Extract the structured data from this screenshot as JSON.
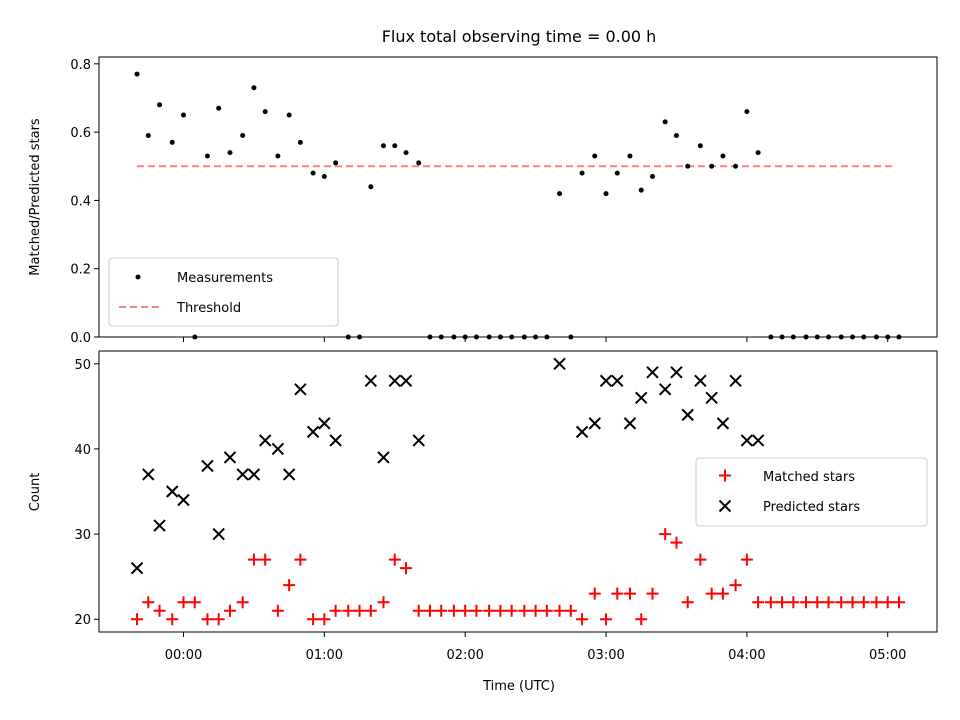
{
  "colors": {
    "measurement": "#000000",
    "threshold": "#ff7f7f",
    "matched": "#ff0000",
    "predicted": "#000000",
    "axis": "#000000"
  },
  "chart_data": [
    {
      "type": "scatter",
      "title": "Flux total observing time = 0.00 h",
      "xlabel": "",
      "ylabel": "Matched/Predicted stars",
      "x_range_hours": [
        -0.6,
        5.35
      ],
      "ylim": [
        0,
        0.82
      ],
      "yticks": [
        0.0,
        0.2,
        0.4,
        0.6,
        0.8
      ],
      "ytick_labels": [
        "0.0",
        "0.2",
        "0.4",
        "0.6",
        "0.8"
      ],
      "xticks_hours": [
        0,
        1,
        2,
        3,
        4,
        5
      ],
      "xtick_labels_shown": false,
      "legend_position": "lower-left",
      "legend": [
        "Measurements",
        "Threshold"
      ],
      "threshold": {
        "name": "Threshold",
        "y": 0.5,
        "x_start": -0.33,
        "x_end": 5.05
      },
      "measurements": {
        "name": "Measurements",
        "x": [
          -0.33,
          -0.25,
          -0.17,
          -0.08,
          0.0,
          0.08,
          0.17,
          0.25,
          0.33,
          0.42,
          0.5,
          0.58,
          0.67,
          0.75,
          0.83,
          0.92,
          1.0,
          1.08,
          1.17,
          1.25,
          1.33,
          1.42,
          1.5,
          1.58,
          1.67,
          1.75,
          1.83,
          1.92,
          2.0,
          2.08,
          2.17,
          2.25,
          2.33,
          2.42,
          2.5,
          2.58,
          2.67,
          2.75,
          2.83,
          2.92,
          3.0,
          3.08,
          3.17,
          3.25,
          3.33,
          3.42,
          3.5,
          3.58,
          3.67,
          3.75,
          3.83,
          3.92,
          4.0,
          4.08,
          4.17,
          4.25,
          4.33,
          4.42,
          4.5,
          4.58,
          4.67,
          4.75,
          4.83,
          4.92,
          5.0,
          5.08
        ],
        "y": [
          0.77,
          0.59,
          0.68,
          0.57,
          0.65,
          0.0,
          0.53,
          0.67,
          0.54,
          0.59,
          0.73,
          0.66,
          0.53,
          0.65,
          0.57,
          0.48,
          0.47,
          0.51,
          0.0,
          0.0,
          0.44,
          0.56,
          0.56,
          0.54,
          0.51,
          0.0,
          0.0,
          0.0,
          0.0,
          0.0,
          0.0,
          0.0,
          0.0,
          0.0,
          0.0,
          0.0,
          0.42,
          0.0,
          0.48,
          0.53,
          0.42,
          0.48,
          0.53,
          0.43,
          0.47,
          0.63,
          0.59,
          0.5,
          0.56,
          0.5,
          0.53,
          0.5,
          0.66,
          0.54,
          0.0,
          0.0,
          0.0,
          0.0,
          0.0,
          0.0,
          0.0,
          0.0,
          0.0,
          0.0,
          0.0,
          0.0
        ]
      }
    },
    {
      "type": "scatter",
      "title": "",
      "xlabel": "Time (UTC)",
      "ylabel": "Count",
      "x_range_hours": [
        -0.6,
        5.35
      ],
      "ylim": [
        18.5,
        51.5
      ],
      "yticks": [
        20,
        30,
        40,
        50
      ],
      "ytick_labels": [
        "20",
        "30",
        "40",
        "50"
      ],
      "xticks_hours": [
        0,
        1,
        2,
        3,
        4,
        5
      ],
      "xtick_labels": [
        "00:00",
        "01:00",
        "02:00",
        "03:00",
        "04:00",
        "05:00"
      ],
      "legend_position": "right",
      "legend": [
        "Matched stars",
        "Predicted stars"
      ],
      "series": [
        {
          "name": "Matched stars",
          "marker": "+",
          "x": [
            -0.33,
            -0.25,
            -0.17,
            -0.08,
            0.0,
            0.08,
            0.17,
            0.25,
            0.33,
            0.42,
            0.5,
            0.58,
            0.67,
            0.75,
            0.83,
            0.92,
            1.0,
            1.08,
            1.17,
            1.25,
            1.33,
            1.42,
            1.5,
            1.58,
            1.67,
            1.75,
            1.83,
            1.92,
            2.0,
            2.08,
            2.17,
            2.25,
            2.33,
            2.42,
            2.5,
            2.58,
            2.67,
            2.75,
            2.83,
            2.92,
            3.0,
            3.08,
            3.17,
            3.25,
            3.33,
            3.42,
            3.5,
            3.58,
            3.67,
            3.75,
            3.83,
            3.92,
            4.0,
            4.08,
            4.17,
            4.25,
            4.33,
            4.42,
            4.5,
            4.58,
            4.67,
            4.75,
            4.83,
            4.92,
            5.0,
            5.08
          ],
          "y": [
            20,
            22,
            21,
            20,
            22,
            22,
            20,
            20,
            21,
            22,
            27,
            27,
            21,
            24,
            27,
            20,
            20,
            21,
            21,
            21,
            21,
            22,
            27,
            26,
            21,
            21,
            21,
            21,
            21,
            21,
            21,
            21,
            21,
            21,
            21,
            21,
            21,
            21,
            20,
            23,
            20,
            23,
            23,
            20,
            23,
            30,
            29,
            22,
            27,
            23,
            23,
            24,
            27,
            22,
            22,
            22,
            22,
            22,
            22,
            22,
            22,
            22,
            22,
            22,
            22,
            22
          ]
        },
        {
          "name": "Predicted stars",
          "marker": "x",
          "x": [
            -0.33,
            -0.25,
            -0.17,
            -0.08,
            0.0,
            0.17,
            0.25,
            0.33,
            0.42,
            0.5,
            0.58,
            0.67,
            0.75,
            0.83,
            0.92,
            1.0,
            1.08,
            1.33,
            1.42,
            1.5,
            1.58,
            1.67,
            2.67,
            2.83,
            2.92,
            3.0,
            3.08,
            3.17,
            3.25,
            3.33,
            3.42,
            3.5,
            3.58,
            3.67,
            3.75,
            3.83,
            3.92,
            4.0,
            4.08
          ],
          "y": [
            26,
            37,
            31,
            35,
            34,
            38,
            30,
            39,
            37,
            37,
            41,
            40,
            37,
            47,
            42,
            43,
            41,
            48,
            39,
            48,
            48,
            41,
            50,
            42,
            43,
            48,
            48,
            43,
            46,
            49,
            47,
            49,
            44,
            48,
            46,
            43,
            48,
            41,
            41
          ]
        }
      ]
    }
  ]
}
